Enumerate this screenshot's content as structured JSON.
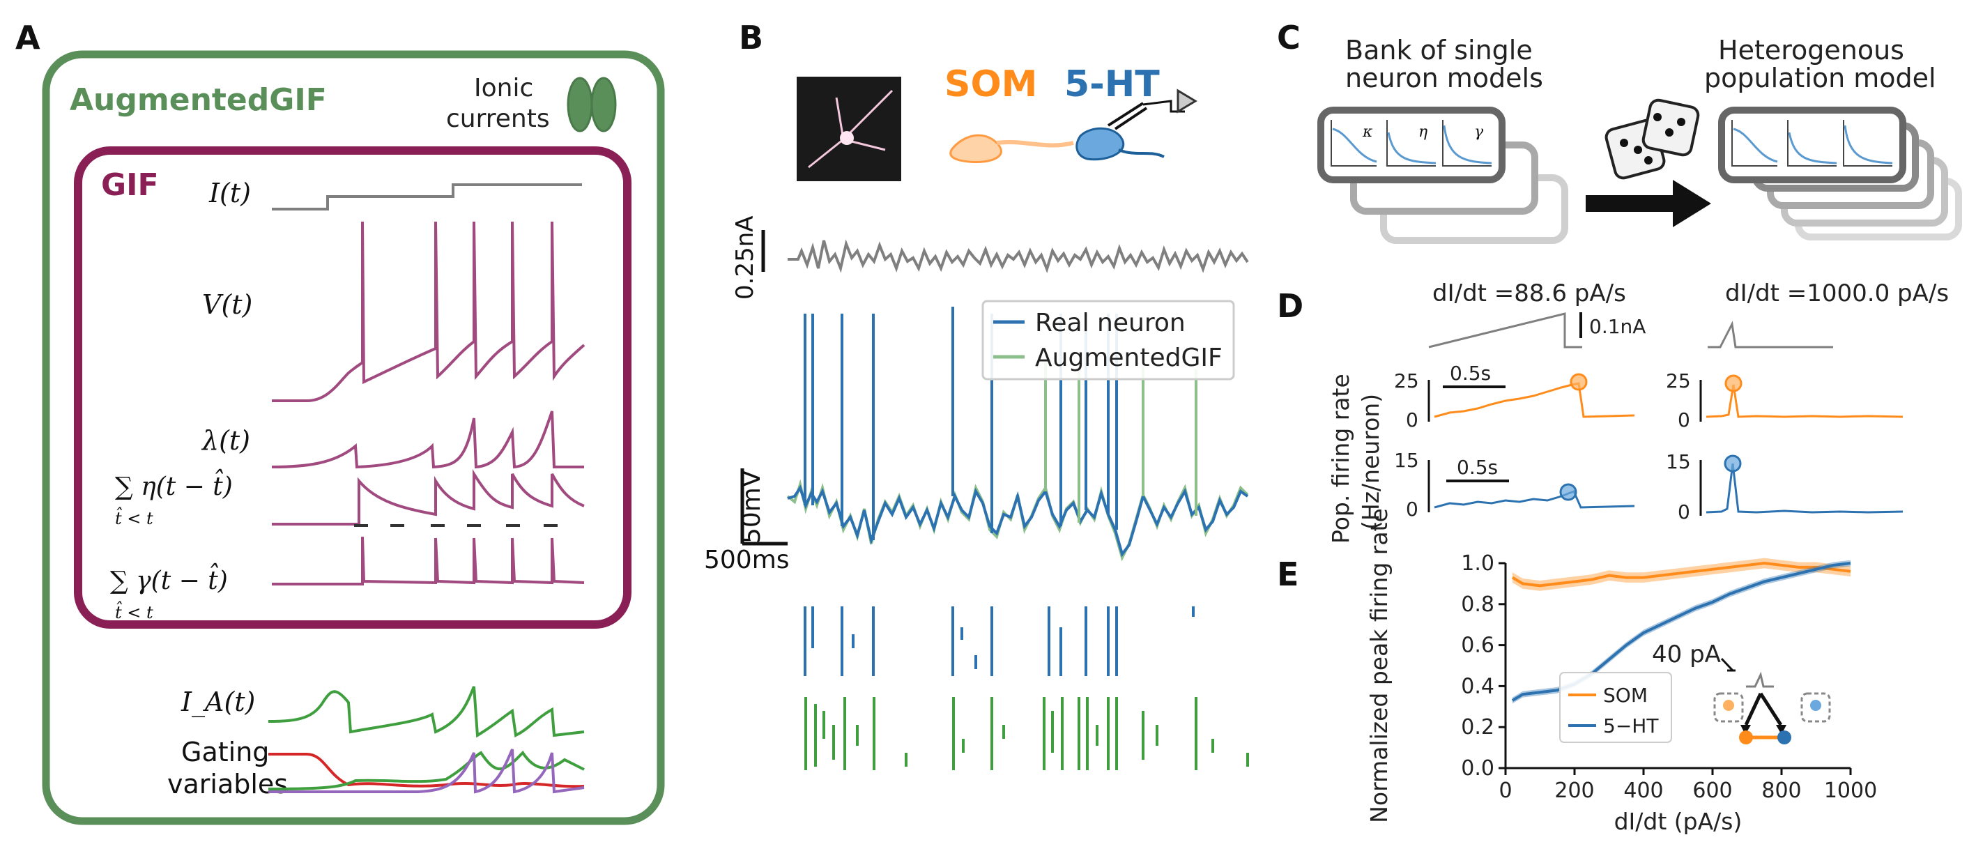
{
  "colors": {
    "green": "#5a8f5a",
    "purple": "#8a1f55",
    "purple_trace": "#a14a7f",
    "grey": "#7f7f7f",
    "orange": "#ff8c1a",
    "blue": "#2c72b0",
    "light_green": "#8cbf8c",
    "gating_green": "#3f9f3f",
    "gating_red": "#d62728",
    "gating_violet": "#9467bd"
  },
  "panelA": {
    "letter": "A",
    "outer_title": "AugmentedGIF",
    "ionic_label_1": "Ionic",
    "ionic_label_2": "currents",
    "inner_title": "GIF",
    "trace_labels": {
      "I": "I(t)",
      "V": "V(t)",
      "lambda": "λ(t)",
      "eta": "∑ η(t − t̂)",
      "eta_sub": "t̂ < t",
      "gamma": "∑ γ(t − t̂)",
      "gamma_sub": "t̂ < t",
      "IA": "I_A(t)",
      "gating_1": "Gating",
      "gating_2": "variables"
    }
  },
  "panelB": {
    "letter": "B",
    "title_som": "SOM",
    "title_5ht": "5-HT",
    "scale_current": "0.25nA",
    "scale_voltage": "50mV",
    "scale_time": "500ms",
    "legend": [
      "Real neuron",
      "AugmentedGIF"
    ]
  },
  "panelC": {
    "letter": "C",
    "left_title_1": "Bank of single",
    "left_title_2": "neuron models",
    "right_title_1": "Heterogenous",
    "right_title_2": "population model",
    "kernel_labels": [
      "κ",
      "η",
      "γ"
    ]
  },
  "panelD": {
    "letter": "D",
    "left_header": "dI/dt =88.6 pA/s",
    "right_header": "dI/dt =1000.0 pA/s",
    "scale_current": "0.1nA",
    "scale_time": "0.5s",
    "ylabel_1": "Pop. firing rate",
    "ylabel_2": "(Hz/neuron)",
    "left_top_ticks": [
      "25",
      "0"
    ],
    "left_bottom_ticks": [
      "15",
      "0"
    ],
    "right_top_ticks": [
      "25",
      "0"
    ],
    "right_bottom_ticks": [
      "15",
      "0"
    ]
  },
  "panelE": {
    "letter": "E",
    "annotation": "40 pA"
  },
  "chart_data": {
    "type": "line",
    "title": "",
    "xlabel": "dI/dt (pA/s)",
    "ylabel": "Normalized peak firing rate",
    "xlim": [
      0,
      1000
    ],
    "ylim": [
      0,
      1.0
    ],
    "xticks": [
      0,
      200,
      400,
      600,
      800,
      1000
    ],
    "yticks": [
      0.0,
      0.2,
      0.4,
      0.6,
      0.8,
      1.0
    ],
    "legend_position": "lower-left",
    "series": [
      {
        "name": "SOM",
        "color": "#ff8c1a",
        "x": [
          20,
          50,
          100,
          150,
          200,
          250,
          300,
          350,
          400,
          450,
          500,
          550,
          600,
          650,
          700,
          750,
          800,
          850,
          900,
          950,
          1000
        ],
        "y": [
          0.93,
          0.9,
          0.89,
          0.9,
          0.91,
          0.92,
          0.94,
          0.93,
          0.93,
          0.94,
          0.95,
          0.96,
          0.97,
          0.98,
          0.99,
          1.0,
          0.99,
          0.98,
          0.98,
          0.97,
          0.96
        ],
        "band": 0.025
      },
      {
        "name": "5−HT",
        "color": "#2c72b0",
        "x": [
          20,
          50,
          100,
          150,
          200,
          250,
          300,
          350,
          400,
          450,
          500,
          550,
          600,
          650,
          700,
          750,
          800,
          850,
          900,
          950,
          1000
        ],
        "y": [
          0.33,
          0.36,
          0.37,
          0.38,
          0.41,
          0.46,
          0.53,
          0.6,
          0.66,
          0.7,
          0.74,
          0.78,
          0.81,
          0.85,
          0.88,
          0.91,
          0.93,
          0.95,
          0.97,
          0.99,
          1.0
        ],
        "band": 0.015
      }
    ]
  }
}
